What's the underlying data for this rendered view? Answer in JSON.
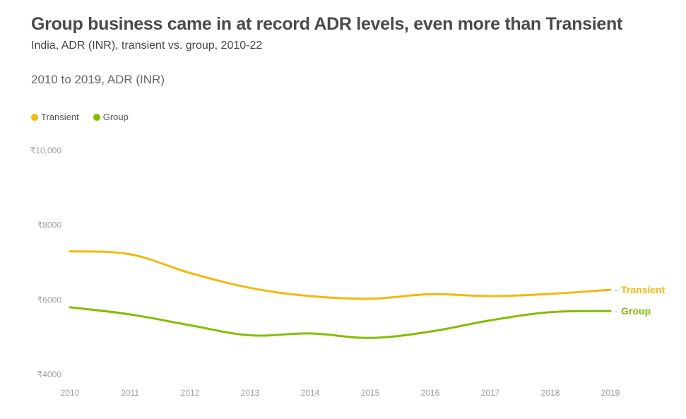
{
  "header": {
    "title": "Group business came in at record ADR levels, even more than Transient",
    "subtitle": "India, ADR (INR), transient vs. group, 2010-22",
    "panel_title": "2010 to 2019, ADR (INR)"
  },
  "legend": {
    "items": [
      {
        "label": "Transient",
        "color": "#f2b90f"
      },
      {
        "label": "Group",
        "color": "#84bd00"
      }
    ]
  },
  "chart_data": {
    "type": "line",
    "title": "Group business came in at record ADR levels, even more than Transient",
    "subtitle": "India, ADR (INR), transient vs. group, 2010-22",
    "x": [
      2010,
      2011,
      2012,
      2013,
      2014,
      2015,
      2016,
      2017,
      2018,
      2019
    ],
    "x_tick_labels": [
      "2010",
      "2011",
      "2012",
      "2013",
      "2014",
      "2015",
      "2016",
      "2017",
      "2018",
      "2019"
    ],
    "ylim": [
      4000,
      10000
    ],
    "y_ticks": [
      4000,
      6000,
      8000,
      10000
    ],
    "y_tick_labels": [
      "₹4000",
      "₹6000",
      "₹8000",
      "₹10,000"
    ],
    "grid": false,
    "legend_position": "top-left",
    "series": [
      {
        "name": "Transient",
        "color": "#f2b90f",
        "values": [
          7300,
          7220,
          6720,
          6320,
          6100,
          6030,
          6150,
          6100,
          6160,
          6270
        ]
      },
      {
        "name": "Group",
        "color": "#84bd00",
        "values": [
          5800,
          5610,
          5320,
          5050,
          5100,
          4980,
          5150,
          5450,
          5670,
          5700
        ]
      }
    ]
  }
}
